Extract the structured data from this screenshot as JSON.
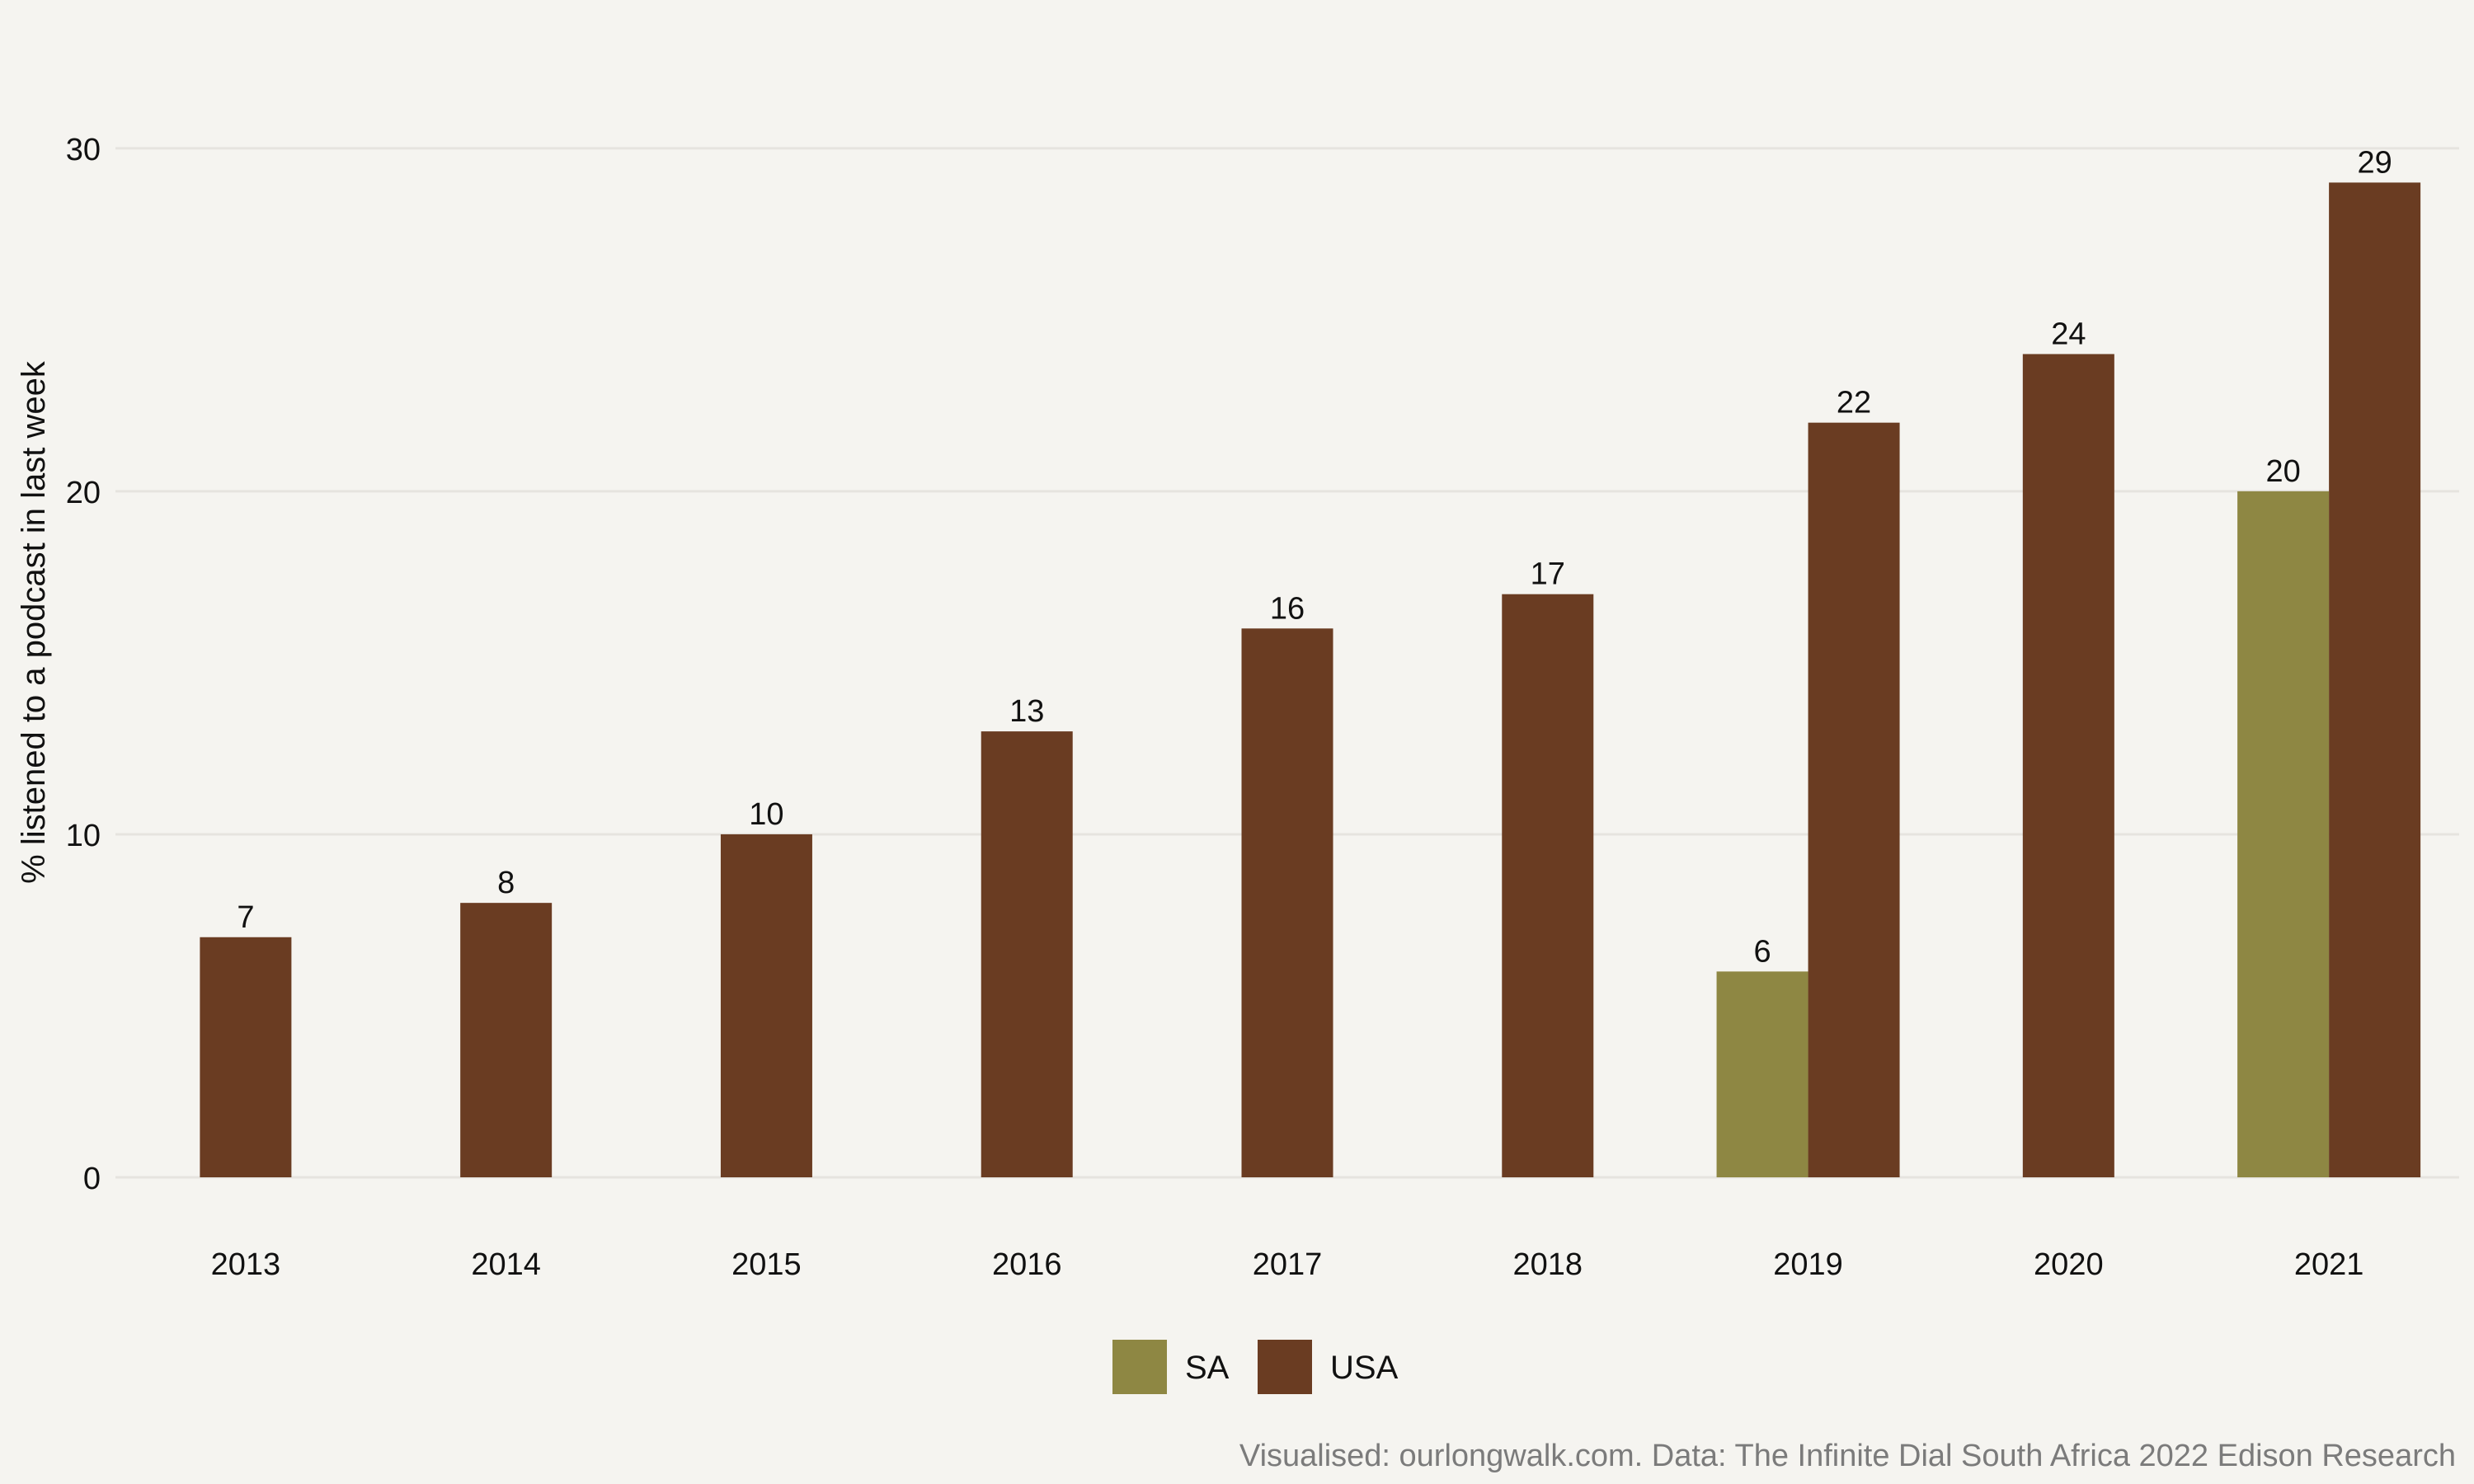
{
  "chart_data": {
    "type": "bar",
    "title": "",
    "xlabel": "",
    "ylabel": "% listened to a podcast in last week",
    "categories": [
      "2013",
      "2014",
      "2015",
      "2016",
      "2017",
      "2018",
      "2019",
      "2020",
      "2021"
    ],
    "series": [
      {
        "name": "SA",
        "color": "#8e8743",
        "values": [
          null,
          null,
          null,
          null,
          null,
          null,
          6,
          null,
          20
        ]
      },
      {
        "name": "USA",
        "color": "#6a3c22",
        "values": [
          7,
          8,
          10,
          13,
          16,
          17,
          22,
          24,
          29
        ]
      }
    ],
    "ylim": [
      0,
      33
    ],
    "yticks": [
      0,
      10,
      20,
      30
    ],
    "grid": true,
    "legend_position": "bottom"
  },
  "caption": "Visualised: ourlongwalk.com. Data: The Infinite Dial South Africa 2022 Edison Research"
}
